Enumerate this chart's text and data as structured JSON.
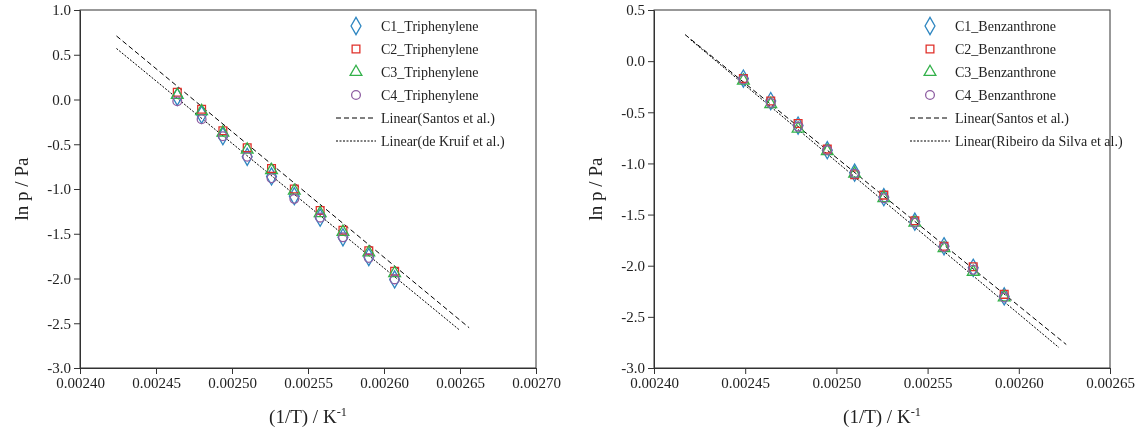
{
  "chart_data": [
    {
      "type": "scatter",
      "xlabel": "(1/T) / K$^{-1}$",
      "ylabel": "ln p / Pa",
      "xlim": [
        0.0024,
        0.0027
      ],
      "ylim": [
        -3.0,
        1.0
      ],
      "xticks": [
        {
          "value": 0.0024,
          "label": "0.00240"
        },
        {
          "value": 0.00245,
          "label": "0.00245"
        },
        {
          "value": 0.0025,
          "label": "0.00250"
        },
        {
          "value": 0.00255,
          "label": "0.00255"
        },
        {
          "value": 0.0026,
          "label": "0.00260"
        },
        {
          "value": 0.00265,
          "label": "0.00265"
        },
        {
          "value": 0.0027,
          "label": "0.00270"
        }
      ],
      "yticks": [
        {
          "value": -3,
          "label": "-3.0"
        },
        {
          "value": -2.5,
          "label": "-2.5"
        },
        {
          "value": -2,
          "label": "-2.0"
        },
        {
          "value": -1.5,
          "label": "-1.5"
        },
        {
          "value": -1,
          "label": "-1.0"
        },
        {
          "value": -0.5,
          "label": "-0.5"
        },
        {
          "value": 0,
          "label": "0.0"
        },
        {
          "value": 0.5,
          "label": "0.5"
        },
        {
          "value": 1,
          "label": "1.0"
        }
      ],
      "x": [
        0.002464,
        0.00248,
        0.002494,
        0.00251,
        0.002526,
        0.002541,
        0.002558,
        0.002573,
        0.00259,
        0.002607
      ],
      "legend": "top right",
      "grid": false,
      "series": [
        {
          "name": "C1_Triphenylene",
          "color": "#2e86c1",
          "marker": "diamond",
          "values": [
            0.03,
            -0.17,
            -0.41,
            -0.64,
            -0.86,
            -1.08,
            -1.32,
            -1.54,
            -1.76,
            -2.01
          ]
        },
        {
          "name": "C2_Triphenylene",
          "color": "#e0302a",
          "marker": "square",
          "values": [
            0.08,
            -0.11,
            -0.35,
            -0.54,
            -0.77,
            -1.0,
            -1.24,
            -1.46,
            -1.69,
            -1.92
          ]
        },
        {
          "name": "C3_Triphenylene",
          "color": "#33b14a",
          "marker": "triangle",
          "values": [
            0.05,
            -0.13,
            -0.37,
            -0.56,
            -0.79,
            -1.02,
            -1.27,
            -1.48,
            -1.71,
            -1.94
          ]
        },
        {
          "name": "C4_Triphenylene",
          "color": "#8e5ea2",
          "marker": "circle",
          "values": [
            -0.02,
            -0.22,
            -0.41,
            -0.64,
            -0.88,
            -1.11,
            -1.32,
            -1.54,
            -1.77,
            -2.01
          ]
        },
        {
          "name": "Linear(Santos et al.)",
          "type": "line",
          "color": "#000000",
          "line_style": "dashed",
          "x": [
            0.002424,
            0.002656
          ],
          "values": [
            0.71,
            -2.55
          ]
        },
        {
          "name": "Linear(de Kruif et al.)",
          "type": "line",
          "color": "#000000",
          "line_style": "dotted",
          "x": [
            0.002424,
            0.00265
          ],
          "values": [
            0.57,
            -2.58
          ]
        }
      ]
    },
    {
      "type": "scatter",
      "xlabel": "(1/T) / K$^{-1}$",
      "ylabel": "ln p / Pa",
      "xlim": [
        0.0024,
        0.00265
      ],
      "ylim": [
        -3.0,
        0.5
      ],
      "xticks": [
        {
          "value": 0.0024,
          "label": "0.00240"
        },
        {
          "value": 0.00245,
          "label": "0.00245"
        },
        {
          "value": 0.0025,
          "label": "0.00250"
        },
        {
          "value": 0.00255,
          "label": "0.00255"
        },
        {
          "value": 0.0026,
          "label": "0.00260"
        },
        {
          "value": 0.00265,
          "label": "0.00265"
        }
      ],
      "yticks": [
        {
          "value": -3,
          "label": "-3.0"
        },
        {
          "value": -2.5,
          "label": "-2.5"
        },
        {
          "value": -2,
          "label": "-2.0"
        },
        {
          "value": -1.5,
          "label": "-1.5"
        },
        {
          "value": -1,
          "label": "-1.0"
        },
        {
          "value": -0.5,
          "label": "-0.5"
        },
        {
          "value": 0,
          "label": "0.0"
        },
        {
          "value": 0.5,
          "label": "0.5"
        }
      ],
      "x": [
        0.002449,
        0.002464,
        0.002479,
        0.002495,
        0.00251,
        0.002526,
        0.002543,
        0.002559,
        0.002575,
        0.002592
      ],
      "legend": "top right",
      "grid": false,
      "series": [
        {
          "name": "C1_Benzanthrone",
          "color": "#2e86c1",
          "marker": "diamond",
          "values": [
            -0.17,
            -0.39,
            -0.63,
            -0.87,
            -1.09,
            -1.33,
            -1.57,
            -1.81,
            -2.02,
            -2.3
          ]
        },
        {
          "name": "C2_Benzanthrone",
          "color": "#e0302a",
          "marker": "square",
          "values": [
            -0.17,
            -0.39,
            -0.61,
            -0.86,
            -1.11,
            -1.31,
            -1.56,
            -1.81,
            -2.01,
            -2.28
          ]
        },
        {
          "name": "C3_Benzanthrone",
          "color": "#33b14a",
          "marker": "triangle",
          "values": [
            -0.19,
            -0.42,
            -0.66,
            -0.88,
            -1.1,
            -1.34,
            -1.58,
            -1.83,
            -2.06,
            -2.31
          ]
        },
        {
          "name": "C4_Benzanthrone",
          "color": "#8e5ea2",
          "marker": "circle",
          "values": [
            -0.18,
            -0.41,
            -0.64,
            -0.87,
            -1.1,
            -1.34,
            -1.58,
            -1.82,
            -2.04,
            -2.31
          ]
        },
        {
          "name": "Linear(Santos et al.)",
          "type": "line",
          "color": "#000000",
          "line_style": "dashed",
          "x": [
            0.002417,
            0.002626
          ],
          "values": [
            0.26,
            -2.77
          ]
        },
        {
          "name": "Linear(Ribeiro da Silva et al.)",
          "type": "line",
          "color": "#000000",
          "line_style": "dotted",
          "x": [
            0.00242,
            0.002622
          ],
          "values": [
            0.21,
            -2.8
          ]
        }
      ]
    }
  ]
}
